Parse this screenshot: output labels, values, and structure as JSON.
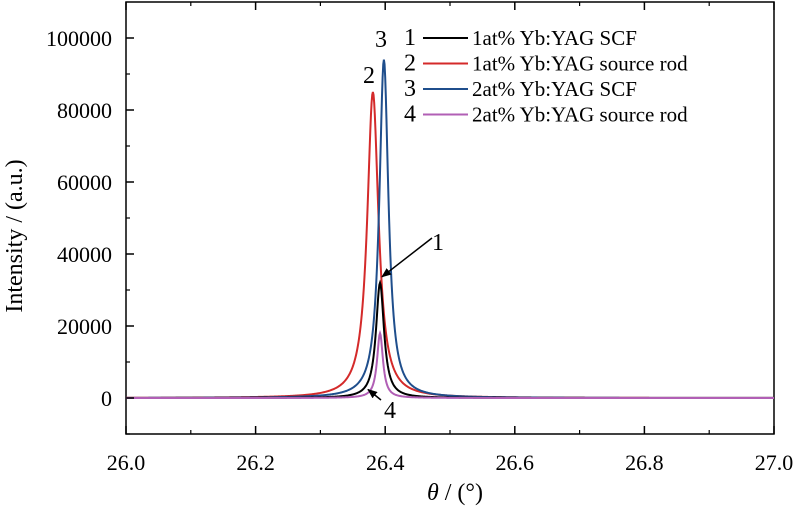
{
  "chart_data": {
    "type": "line",
    "xlabel": "θ / (°)",
    "ylabel": "Intensity / (a.u.)",
    "xlim": [
      26.0,
      27.0
    ],
    "ylim": [
      -10000,
      110000
    ],
    "x_ticks": [
      "26.0",
      "26.2",
      "26.4",
      "26.6",
      "26.8",
      "27.0"
    ],
    "y_ticks": [
      "0",
      "20000",
      "40000",
      "60000",
      "80000",
      "100000"
    ],
    "grid": false,
    "legend_position": "top-right",
    "series": [
      {
        "name": "1at% Yb:YAG SCF",
        "number": "1",
        "color": "#000000",
        "peak_x": 26.392,
        "peak_y": 32000,
        "hwhm": 0.0075
      },
      {
        "name": "1at% Yb:YAG source rod",
        "number": "2",
        "color": "#d42a2a",
        "peak_x": 26.381,
        "peak_y": 85000,
        "hwhm": 0.0105
      },
      {
        "name": "2at% Yb:YAG SCF",
        "number": "3",
        "color": "#1f4e8c",
        "peak_x": 26.398,
        "peak_y": 94000,
        "hwhm": 0.0085
      },
      {
        "name": "2at% Yb:YAG source rod",
        "number": "4",
        "color": "#b15fb5",
        "peak_x": 26.392,
        "peak_y": 18000,
        "hwhm": 0.0055
      }
    ],
    "annotations": [
      {
        "text": "1",
        "target_series": "1",
        "arrow": true
      },
      {
        "text": "2",
        "target_series": "2",
        "arrow": false
      },
      {
        "text": "3",
        "target_series": "3",
        "arrow": false
      },
      {
        "text": "4",
        "target_series": "4",
        "arrow": true
      }
    ]
  }
}
